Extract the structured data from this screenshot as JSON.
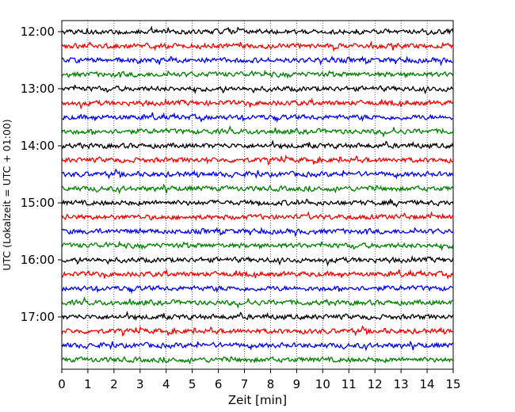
{
  "chart_data": {
    "type": "line",
    "title": "",
    "xlabel": "Zeit  [min]",
    "ylabel": "UTC (Lokalzeit = UTC + 01:00)",
    "xlim": [
      0,
      15
    ],
    "x_ticks": [
      "0",
      "1",
      "2",
      "3",
      "4",
      "5",
      "6",
      "7",
      "8",
      "9",
      "10",
      "11",
      "12",
      "13",
      "14",
      "15"
    ],
    "y_ticks": [
      "12:00",
      "13:00",
      "14:00",
      "15:00",
      "16:00",
      "17:00"
    ],
    "traces_per_hour": 4,
    "trace_start_times": [
      "12:00",
      "12:15",
      "12:30",
      "12:45",
      "13:00",
      "13:15",
      "13:30",
      "13:45",
      "14:00",
      "14:15",
      "14:30",
      "14:45",
      "15:00",
      "15:15",
      "15:30",
      "15:45",
      "16:00",
      "16:15",
      "16:30",
      "16:45",
      "17:00",
      "17:15",
      "17:30",
      "17:45"
    ],
    "trace_colors": [
      "#000000",
      "#ff0000",
      "#0000ff",
      "#008000"
    ],
    "x_grid": "dotted",
    "y_grid": false,
    "legend": "none"
  }
}
